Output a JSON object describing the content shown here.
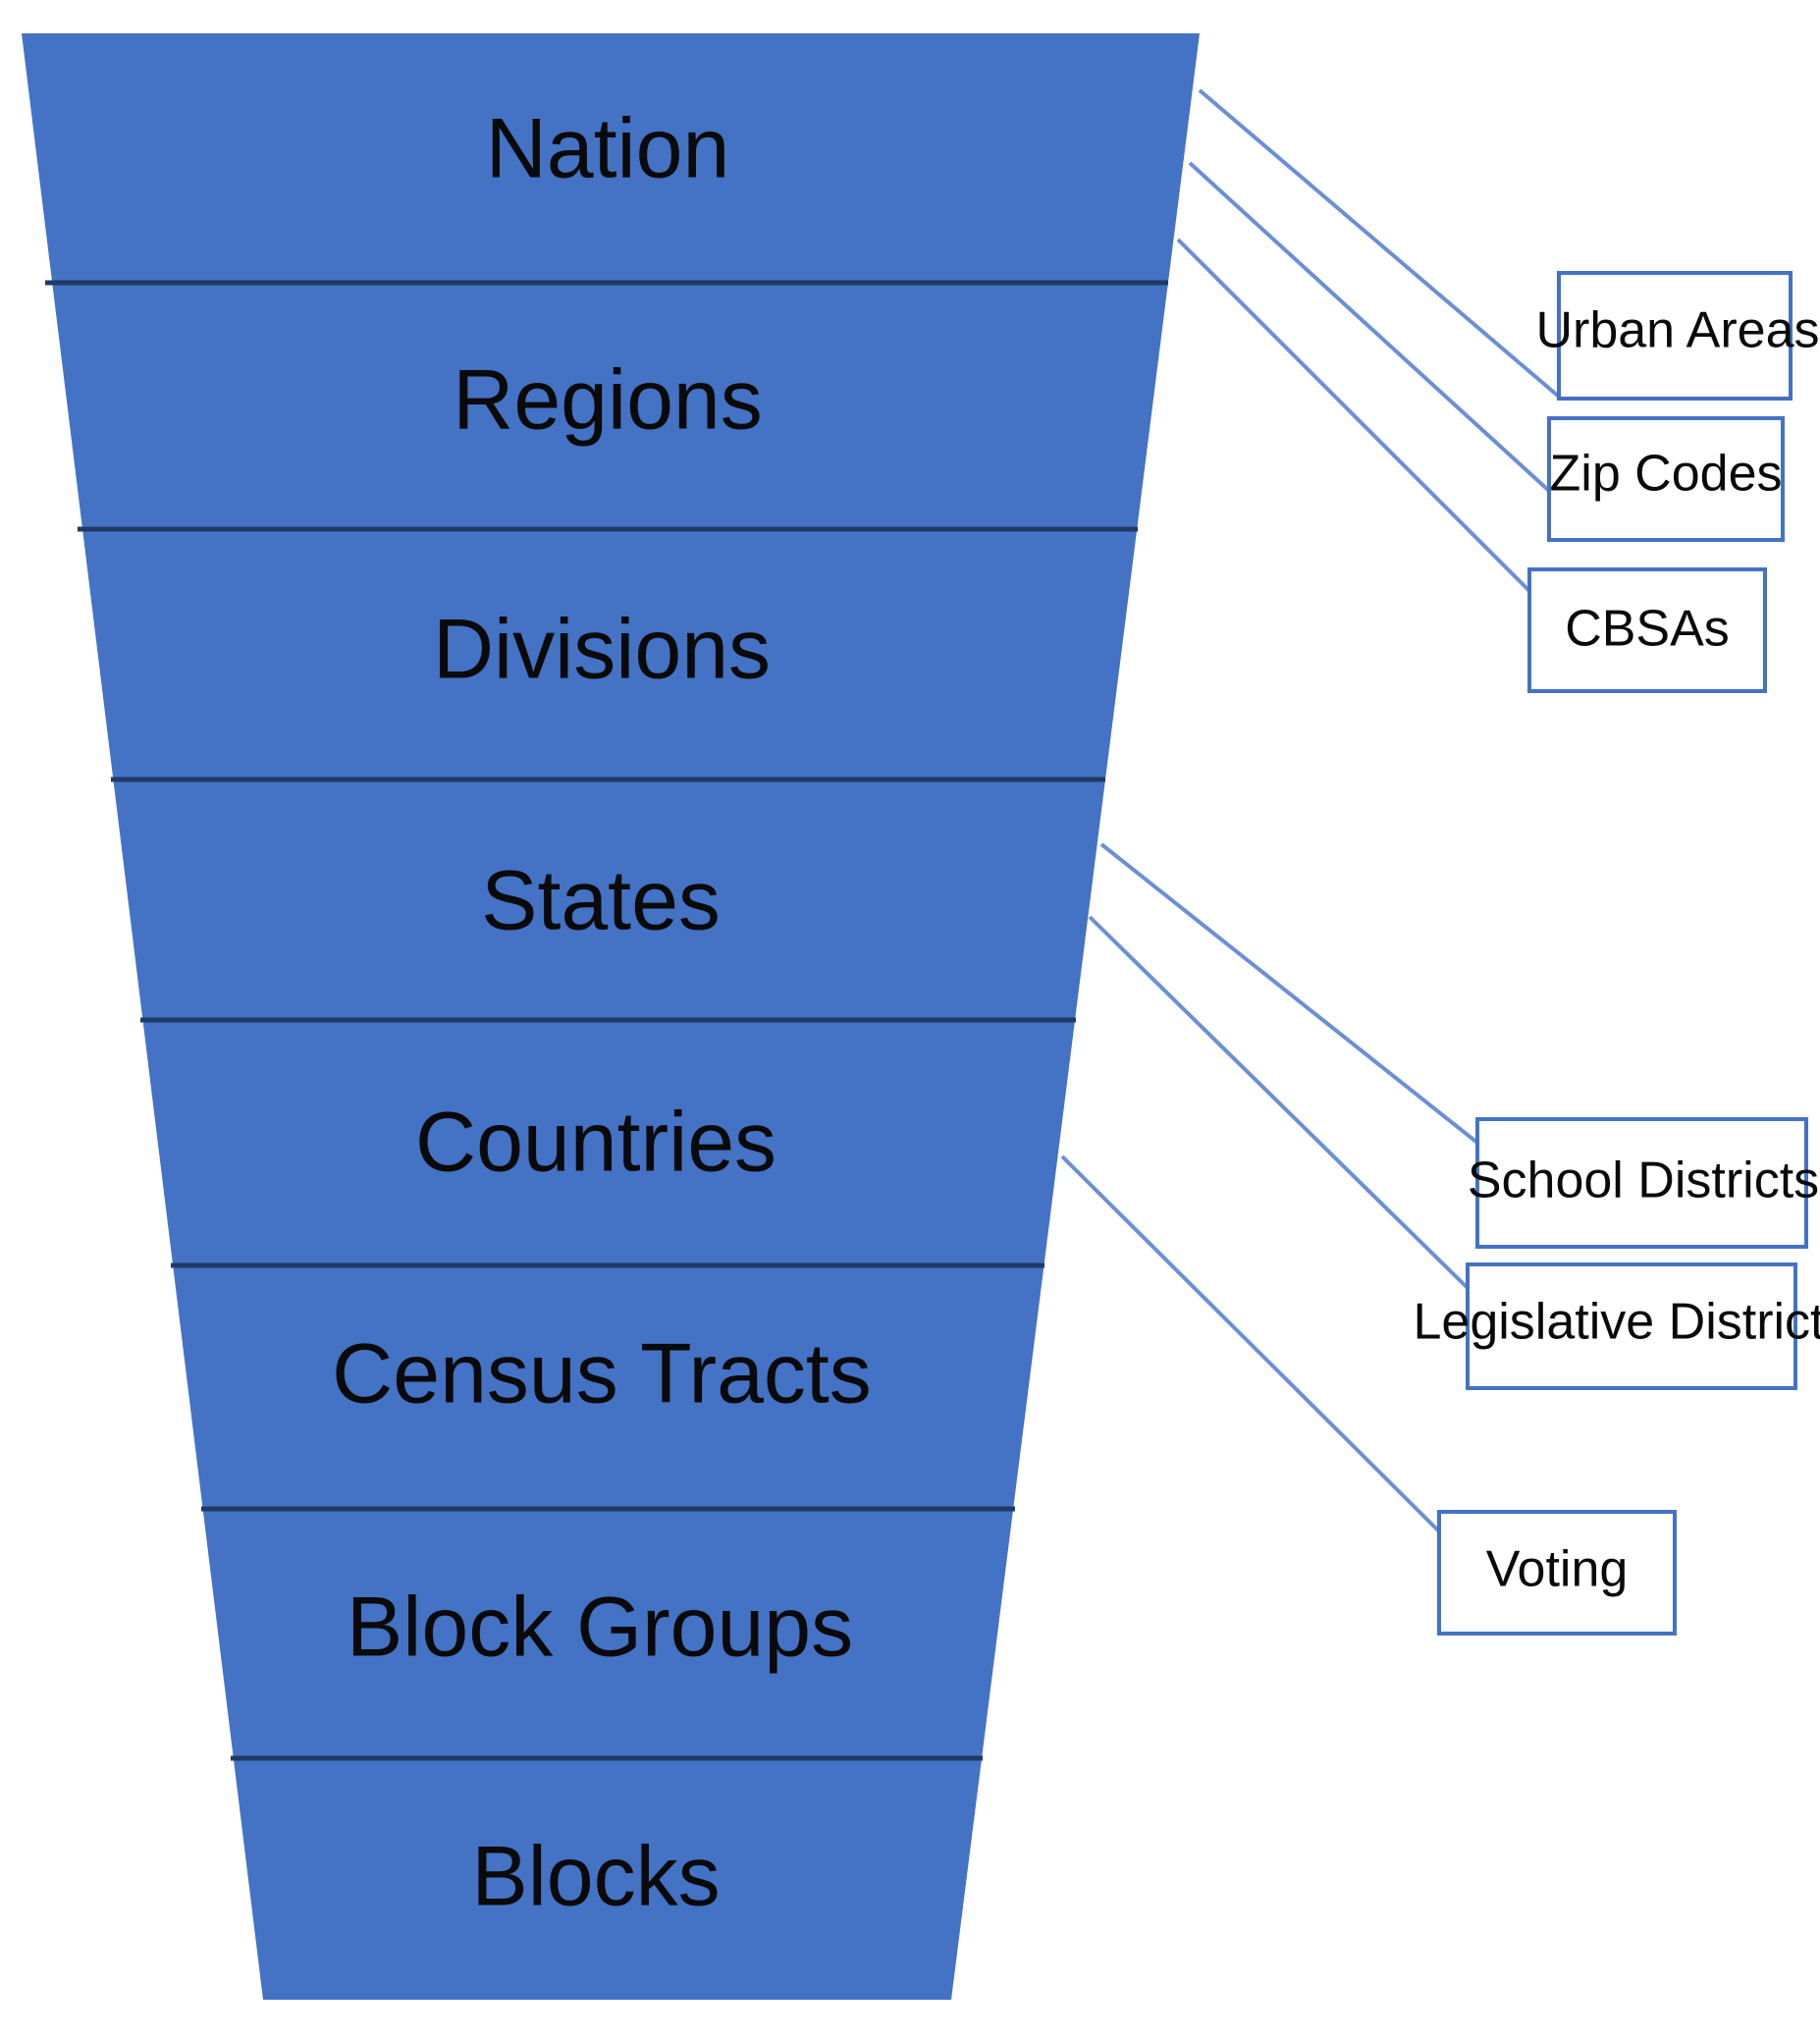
{
  "colors": {
    "funnel_fill": "#4472C4",
    "band_divider": "#1F3A66",
    "connector": "#6B8FD6",
    "box_border": "#4472C4",
    "text": "#0a0a0a"
  },
  "levels": [
    "Nation",
    "Regions",
    "Divisions",
    "States",
    "Countries",
    "Census Tracts",
    "Block Groups",
    "Blocks"
  ],
  "boxes": {
    "urban_areas": "Urban Areas",
    "zip_codes": "Zip Codes",
    "cbsas": "CBSAs",
    "school_districts": "School Districts",
    "legislative_districts": "Legislative Districts",
    "voting": "Voting"
  }
}
